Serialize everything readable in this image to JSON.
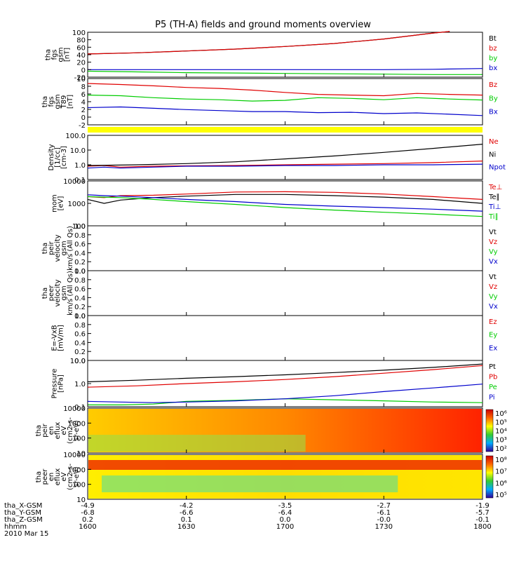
{
  "title": "P5 (TH-A) fields and ground moments overview",
  "colors": {
    "black": "#000000",
    "red": "#e00000",
    "green": "#00cc00",
    "blue": "#0000cc",
    "yellow": "#ffff00"
  },
  "chart_data": [
    {
      "type": "line",
      "id": "p1",
      "ylabel": [
        "tha",
        "fgs",
        "gsm",
        "[nT]"
      ],
      "ylim": [
        -20,
        100
      ],
      "yticks": [
        "100",
        "80",
        "60",
        "40",
        "20",
        "0",
        "-20"
      ],
      "legend": [
        {
          "label": "Bt",
          "color": "black"
        },
        {
          "label": "bz",
          "color": "red"
        },
        {
          "label": "by",
          "color": "green"
        },
        {
          "label": "bx",
          "color": "blue"
        }
      ],
      "series": [
        {
          "name": "Bt",
          "color": "black",
          "x": [
            1600,
            1615,
            1630,
            1645,
            1700,
            1715,
            1730,
            1745,
            1750
          ],
          "y": [
            42,
            45,
            50,
            55,
            62,
            70,
            82,
            98,
            102
          ]
        },
        {
          "name": "bz",
          "color": "red",
          "x": [
            1600,
            1615,
            1630,
            1645,
            1700,
            1715,
            1730,
            1745,
            1750
          ],
          "y": [
            42,
            45,
            50,
            55,
            62,
            70,
            82,
            98,
            102
          ]
        },
        {
          "name": "by",
          "color": "green",
          "x": [
            1600,
            1615,
            1630,
            1645,
            1700,
            1715,
            1730,
            1745,
            1800
          ],
          "y": [
            -4,
            -6,
            -8,
            -9,
            -10,
            -11,
            -12,
            -13,
            -13
          ]
        },
        {
          "name": "bx",
          "color": "blue",
          "x": [
            1600,
            1630,
            1700,
            1715,
            1730,
            1745,
            1800
          ],
          "y": [
            0,
            0,
            0,
            0,
            0,
            1,
            3
          ]
        }
      ]
    },
    {
      "type": "line",
      "id": "p2",
      "ylabel": [
        "tha",
        "fgs",
        "gsm",
        "T89",
        "[nT]"
      ],
      "ylim": [
        -4,
        10
      ],
      "yticks": [
        "10",
        "8",
        "6",
        "4",
        "2",
        "0",
        "-2"
      ],
      "legend": [
        {
          "label": "Bz",
          "color": "red"
        },
        {
          "label": "By",
          "color": "green"
        },
        {
          "label": "Bx",
          "color": "blue"
        }
      ],
      "series": [
        {
          "name": "Bz",
          "color": "red",
          "x": [
            1600,
            1610,
            1620,
            1630,
            1640,
            1650,
            1700,
            1710,
            1720,
            1730,
            1740,
            1750,
            1800
          ],
          "y": [
            8.5,
            8.2,
            7.8,
            7.3,
            7.0,
            6.5,
            5.8,
            5.2,
            5.0,
            4.8,
            5.5,
            5.2,
            5.0
          ]
        },
        {
          "name": "By",
          "color": "green",
          "x": [
            1600,
            1610,
            1620,
            1630,
            1640,
            1650,
            1700,
            1710,
            1720,
            1730,
            1740,
            1750,
            1800
          ],
          "y": [
            5.0,
            4.8,
            4.2,
            3.8,
            3.6,
            3.2,
            3.4,
            4.2,
            4.0,
            3.6,
            4.2,
            3.8,
            3.5
          ]
        },
        {
          "name": "Bx",
          "color": "blue",
          "x": [
            1600,
            1610,
            1620,
            1630,
            1640,
            1650,
            1700,
            1710,
            1720,
            1730,
            1740,
            1750,
            1800
          ],
          "y": [
            1.2,
            1.4,
            1.0,
            0.6,
            0.3,
            0.0,
            0.0,
            -0.3,
            -0.2,
            -0.6,
            -0.4,
            -0.8,
            -1.2
          ]
        }
      ]
    },
    {
      "type": "line",
      "id": "p3",
      "ylabel": [
        "Density",
        "[1/cc]",
        "[cm-3]"
      ],
      "ylim": [
        0.1,
        100
      ],
      "log": true,
      "yticks": [
        "100.0",
        "10.0",
        "1.0",
        "0.1"
      ],
      "legend": [
        {
          "label": "Ne",
          "color": "red"
        },
        {
          "label": "Ni",
          "color": "black"
        },
        {
          "label": "Npot",
          "color": "blue"
        }
      ],
      "series": [
        {
          "name": "Ne",
          "color": "red",
          "x": [
            1600,
            1605,
            1610,
            1620,
            1630,
            1645,
            1700,
            1715,
            1730,
            1745,
            1800
          ],
          "y": [
            0.8,
            0.9,
            0.7,
            0.8,
            0.85,
            0.9,
            1.0,
            1.1,
            1.2,
            1.4,
            1.8
          ]
        },
        {
          "name": "Ni",
          "color": "black",
          "x": [
            1600,
            1615,
            1630,
            1645,
            1700,
            1715,
            1730,
            1745,
            1800
          ],
          "y": [
            0.9,
            1.0,
            1.2,
            1.6,
            2.5,
            4.0,
            7.0,
            13,
            25
          ]
        },
        {
          "name": "Npot",
          "color": "blue",
          "x": [
            1600,
            1605,
            1610,
            1620,
            1630,
            1645,
            1700,
            1715,
            1730,
            1745,
            1800
          ],
          "y": [
            0.6,
            0.7,
            0.6,
            0.7,
            0.8,
            0.8,
            0.9,
            0.9,
            1.0,
            1.0,
            1.1
          ]
        }
      ]
    },
    {
      "type": "line",
      "id": "p4",
      "ylabel": [
        "mom",
        "[eV]"
      ],
      "ylim": [
        100,
        10000
      ],
      "log": true,
      "yticks": [
        "10000",
        "1000",
        "100"
      ],
      "legend": [
        {
          "label": "Te⊥",
          "color": "red"
        },
        {
          "label": "Te∥",
          "color": "black"
        },
        {
          "label": "Ti⊥",
          "color": "blue"
        },
        {
          "label": "Ti∥",
          "color": "green"
        }
      ],
      "series": [
        {
          "name": "Te⊥",
          "color": "red",
          "x": [
            1600,
            1605,
            1610,
            1620,
            1630,
            1645,
            1700,
            1715,
            1730,
            1745,
            1800
          ],
          "y": [
            2000,
            1800,
            2200,
            2300,
            2600,
            3200,
            3300,
            3100,
            2600,
            2000,
            1500
          ]
        },
        {
          "name": "Te∥",
          "color": "black",
          "x": [
            1600,
            1605,
            1610,
            1620,
            1630,
            1645,
            1700,
            1715,
            1730,
            1745,
            1800
          ],
          "y": [
            1500,
            1000,
            1400,
            1800,
            2100,
            2500,
            2500,
            2200,
            1900,
            1500,
            1000
          ]
        },
        {
          "name": "Ti⊥",
          "color": "blue",
          "x": [
            1600,
            1605,
            1610,
            1620,
            1630,
            1645,
            1700,
            1715,
            1730,
            1745,
            1800
          ],
          "y": [
            2400,
            2200,
            2100,
            1800,
            1500,
            1200,
            900,
            750,
            650,
            550,
            450
          ]
        },
        {
          "name": "Ti∥",
          "color": "green",
          "x": [
            1600,
            1605,
            1610,
            1620,
            1630,
            1645,
            1700,
            1715,
            1730,
            1745,
            1800
          ],
          "y": [
            2000,
            1900,
            1800,
            1500,
            1200,
            900,
            650,
            500,
            400,
            330,
            260
          ]
        }
      ]
    },
    {
      "type": "line",
      "id": "p5",
      "ylabel": [
        "tha",
        "peir",
        "velocity",
        "gsm",
        "km/s (All Qs)"
      ],
      "ylim": [
        0,
        1
      ],
      "yticks": [
        "1.0",
        "0.8",
        "0.6",
        "0.4",
        "0.2",
        "0.0"
      ],
      "legend": [
        {
          "label": "Vt",
          "color": "black"
        },
        {
          "label": "Vz",
          "color": "red"
        },
        {
          "label": "Vy",
          "color": "green"
        },
        {
          "label": "Vx",
          "color": "blue"
        }
      ],
      "series": []
    },
    {
      "type": "line",
      "id": "p6",
      "ylabel": [
        "tha",
        "peer",
        "velocity",
        "gsm",
        "km/s (All Qs)"
      ],
      "ylim": [
        0,
        1
      ],
      "yticks": [
        "1.0",
        "0.8",
        "0.6",
        "0.4",
        "0.2",
        "0.0"
      ],
      "legend": [
        {
          "label": "Vt",
          "color": "black"
        },
        {
          "label": "Vz",
          "color": "red"
        },
        {
          "label": "Vy",
          "color": "green"
        },
        {
          "label": "Vx",
          "color": "blue"
        }
      ],
      "series": []
    },
    {
      "type": "line",
      "id": "p7",
      "ylabel": [
        "E=-VxB",
        "[mV/m]"
      ],
      "ylim": [
        0,
        1
      ],
      "yticks": [
        "1.0",
        "0.8",
        "0.6",
        "0.4",
        "0.2",
        "0.0"
      ],
      "legend": [
        {
          "label": "Ez",
          "color": "red"
        },
        {
          "label": "Ey",
          "color": "green"
        },
        {
          "label": "Ex",
          "color": "blue"
        }
      ],
      "series": []
    },
    {
      "type": "line",
      "id": "p8",
      "ylabel": [
        "Pressure",
        "[nPa]"
      ],
      "ylim": [
        0.1,
        10
      ],
      "log": true,
      "yticks": [
        "10.0",
        "1.0",
        "0.1"
      ],
      "legend": [
        {
          "label": "Pt",
          "color": "black"
        },
        {
          "label": "Pb",
          "color": "red"
        },
        {
          "label": "Pe",
          "color": "green"
        },
        {
          "label": "Pi",
          "color": "blue"
        }
      ],
      "series": [
        {
          "name": "Pt",
          "color": "black",
          "x": [
            1600,
            1615,
            1630,
            1645,
            1700,
            1715,
            1730,
            1745,
            1800
          ],
          "y": [
            1.2,
            1.4,
            1.7,
            2.0,
            2.4,
            3.0,
            3.8,
            5.0,
            7.0
          ]
        },
        {
          "name": "Pb",
          "color": "red",
          "x": [
            1600,
            1615,
            1630,
            1645,
            1700,
            1715,
            1730,
            1745,
            1800
          ],
          "y": [
            0.7,
            0.8,
            1.0,
            1.2,
            1.5,
            2.0,
            2.8,
            4.0,
            6.0
          ]
        },
        {
          "name": "Pe",
          "color": "green",
          "x": [
            1600,
            1610,
            1620,
            1630,
            1645,
            1700,
            1715,
            1730,
            1745,
            1800
          ],
          "y": [
            0.12,
            0.12,
            0.13,
            0.17,
            0.19,
            0.22,
            0.2,
            0.18,
            0.16,
            0.15
          ]
        },
        {
          "name": "Pi",
          "color": "blue",
          "x": [
            1600,
            1610,
            1620,
            1630,
            1645,
            1700,
            1715,
            1730,
            1745,
            1800
          ],
          "y": [
            0.17,
            0.16,
            0.15,
            0.16,
            0.18,
            0.22,
            0.3,
            0.45,
            0.65,
            0.95
          ]
        }
      ]
    },
    {
      "type": "heatmap",
      "id": "p9",
      "ylabel": [
        "tha",
        "peir",
        "en",
        "eflux",
        "eV",
        "(cm2-s-",
        "sr-eV)"
      ],
      "yticks": [
        "10000",
        "1000",
        "100",
        "10"
      ],
      "colorbar": [
        "10⁶",
        "10⁵",
        "10⁴",
        "10³",
        "10²"
      ]
    },
    {
      "type": "heatmap",
      "id": "p10",
      "ylabel": [
        "tha",
        "peer",
        "en",
        "eflux",
        "eV",
        "(cm2-s-",
        "sr-eV)"
      ],
      "yticks": [
        "10000",
        "1000",
        "100",
        "10"
      ],
      "colorbar": [
        "10⁸",
        "10⁷",
        "10⁶",
        "10⁵"
      ]
    }
  ],
  "xaxis": {
    "hhmm": [
      "1600",
      "1630",
      "1700",
      "1730",
      "1800"
    ],
    "rows": [
      {
        "label": "tha_X-GSM",
        "values": [
          "-4.9",
          "-4.2",
          "-3.5",
          "-2.7",
          "-1.9"
        ]
      },
      {
        "label": "tha_Y-GSM",
        "values": [
          "-6.8",
          "-6.6",
          "-6.4",
          "-6.1",
          "-5.7"
        ]
      },
      {
        "label": "tha_Z-GSM",
        "values": [
          "0.2",
          "0.1",
          "0.0",
          "-0.0",
          "-0.1"
        ]
      },
      {
        "label": "hhmm",
        "values": [
          "1600",
          "1630",
          "1700",
          "1730",
          "1800"
        ]
      }
    ],
    "date": "2010 Mar 15"
  }
}
